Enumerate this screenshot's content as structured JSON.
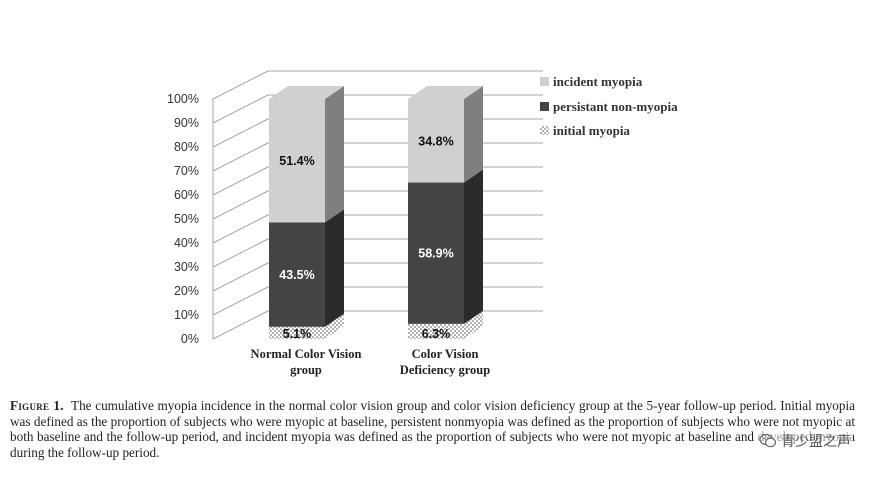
{
  "chart_data": {
    "type": "bar",
    "stacked": true,
    "style": "3d",
    "categories": [
      "Normal Color Vision group",
      "Color Vision Deficiency group"
    ],
    "category_lines": [
      [
        "Normal Color Vision",
        "group"
      ],
      [
        "Color Vision",
        "Deficiency group"
      ]
    ],
    "series": [
      {
        "name": "initial myopia",
        "values": [
          5.1,
          6.3
        ],
        "labels": [
          "5.1%",
          "6.3%"
        ],
        "pattern": "dotted"
      },
      {
        "name": "persistant non-myopia",
        "values": [
          43.5,
          58.9
        ],
        "labels": [
          "43.5%",
          "58.9%"
        ]
      },
      {
        "name": "incident myopia",
        "values": [
          51.4,
          34.8
        ],
        "labels": [
          "51.4%",
          "34.8%"
        ]
      }
    ],
    "y_ticks": [
      "0%",
      "10%",
      "20%",
      "30%",
      "40%",
      "50%",
      "60%",
      "70%",
      "80%",
      "90%",
      "100%"
    ],
    "ylim": [
      0,
      100
    ],
    "grid": true,
    "legend_position": "right",
    "legend_order": [
      "incident myopia",
      "persistant non-myopia",
      "initial myopia"
    ]
  },
  "colors": {
    "incident_front": "#d0d0d0",
    "incident_side": "#7f7f7f",
    "persistent_front": "#444444",
    "persistent_side": "#2b2b2b",
    "initial_front": "#ffffff",
    "initial_dot": "#555555",
    "grid": "#a6a6a6",
    "data_label_light": "#ffffff",
    "data_label_dark": "#111111"
  },
  "caption": {
    "figure_label": "Figure 1.",
    "text": "The cumulative myopia incidence in the normal color vision group and color vision deficiency group at the 5-year follow-up period. Initial myopia was defined as the proportion of subjects who were myopic at baseline, persistent nonmyopia was defined as the proportion of subjects who were not myopic at both baseline and the follow-up period, and incident myopia was defined as the proportion of subjects who were not myopic at baseline and developed myopia during the follow-up period."
  },
  "watermark": {
    "text": "青少盟之声",
    "icon": "wechat-icon"
  }
}
